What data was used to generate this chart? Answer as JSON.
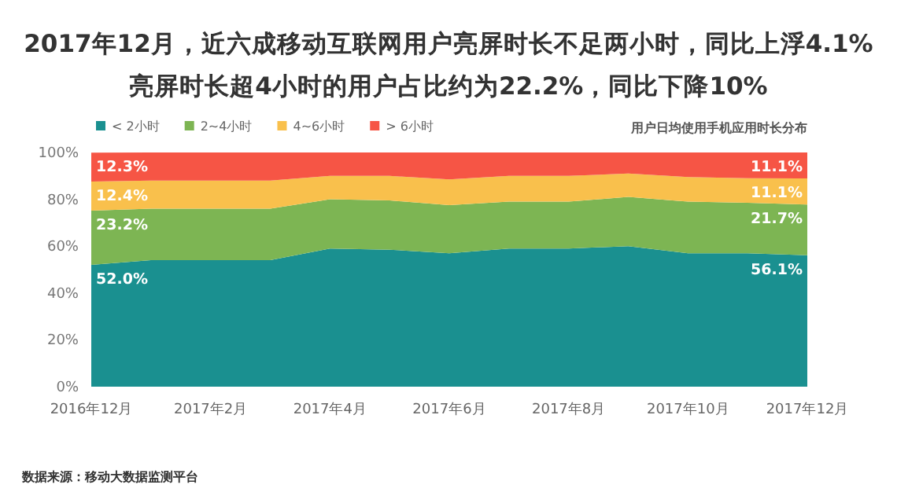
{
  "chart_data": {
    "type": "area",
    "stacked": true,
    "title": "2017年12月，近六成移动互联网用户亮屏时长不足两小时，同比上浮4.1%",
    "subtitle": "亮屏时长超4小时的用户占比约为22.2%，同比下降10%",
    "annotations": [
      "用户日均使用手机应用时长分布",
      "数据来源：移动大数据监测平台"
    ],
    "categories": [
      "2016年12月",
      null,
      "2017年2月",
      null,
      "2017年4月",
      null,
      "2017年6月",
      null,
      "2017年8月",
      null,
      "2017年10月",
      null,
      "2017年12月"
    ],
    "ylim": [
      0,
      100
    ],
    "yticks": [
      {
        "value": 0,
        "label": "0%"
      },
      {
        "value": 20,
        "label": "20%"
      },
      {
        "value": 40,
        "label": "40%"
      },
      {
        "value": 60,
        "label": "60%"
      },
      {
        "value": 80,
        "label": "80%"
      },
      {
        "value": 100,
        "label": "100%"
      }
    ],
    "legend": "top left",
    "grid": false,
    "series": [
      {
        "name": "< 2小时",
        "color": "#1a9090",
        "values": [
          52.0,
          54,
          54,
          54,
          59,
          58.5,
          57,
          59,
          59,
          60,
          57,
          57,
          56.1
        ],
        "value_labels": [
          "52.0%",
          null,
          null,
          null,
          null,
          null,
          null,
          null,
          null,
          null,
          null,
          null,
          "56.1%"
        ]
      },
      {
        "name": "2~4小时",
        "color": "#7db553",
        "values": [
          23.2,
          22,
          22,
          22,
          21,
          21,
          20.5,
          20,
          20,
          21,
          22,
          21.5,
          21.7
        ],
        "value_labels": [
          "23.2%",
          null,
          null,
          null,
          null,
          null,
          null,
          null,
          null,
          null,
          null,
          null,
          "21.7%"
        ]
      },
      {
        "name": "4~6小时",
        "color": "#f9c04c",
        "values": [
          12.4,
          12,
          12,
          12,
          10,
          10.5,
          11,
          11,
          11,
          10,
          10.5,
          10.5,
          11.1
        ],
        "value_labels": [
          "12.4%",
          null,
          null,
          null,
          null,
          null,
          null,
          null,
          null,
          null,
          null,
          null,
          "11.1%"
        ]
      },
      {
        "name": "> 6小时",
        "color": "#f65545",
        "values": [
          12.3,
          12,
          12,
          12,
          10,
          10,
          11.5,
          10,
          10,
          9,
          10.5,
          11,
          11.1
        ],
        "value_labels": [
          "12.3%",
          null,
          null,
          null,
          null,
          null,
          null,
          null,
          null,
          null,
          null,
          null,
          "11.1%"
        ]
      }
    ]
  }
}
